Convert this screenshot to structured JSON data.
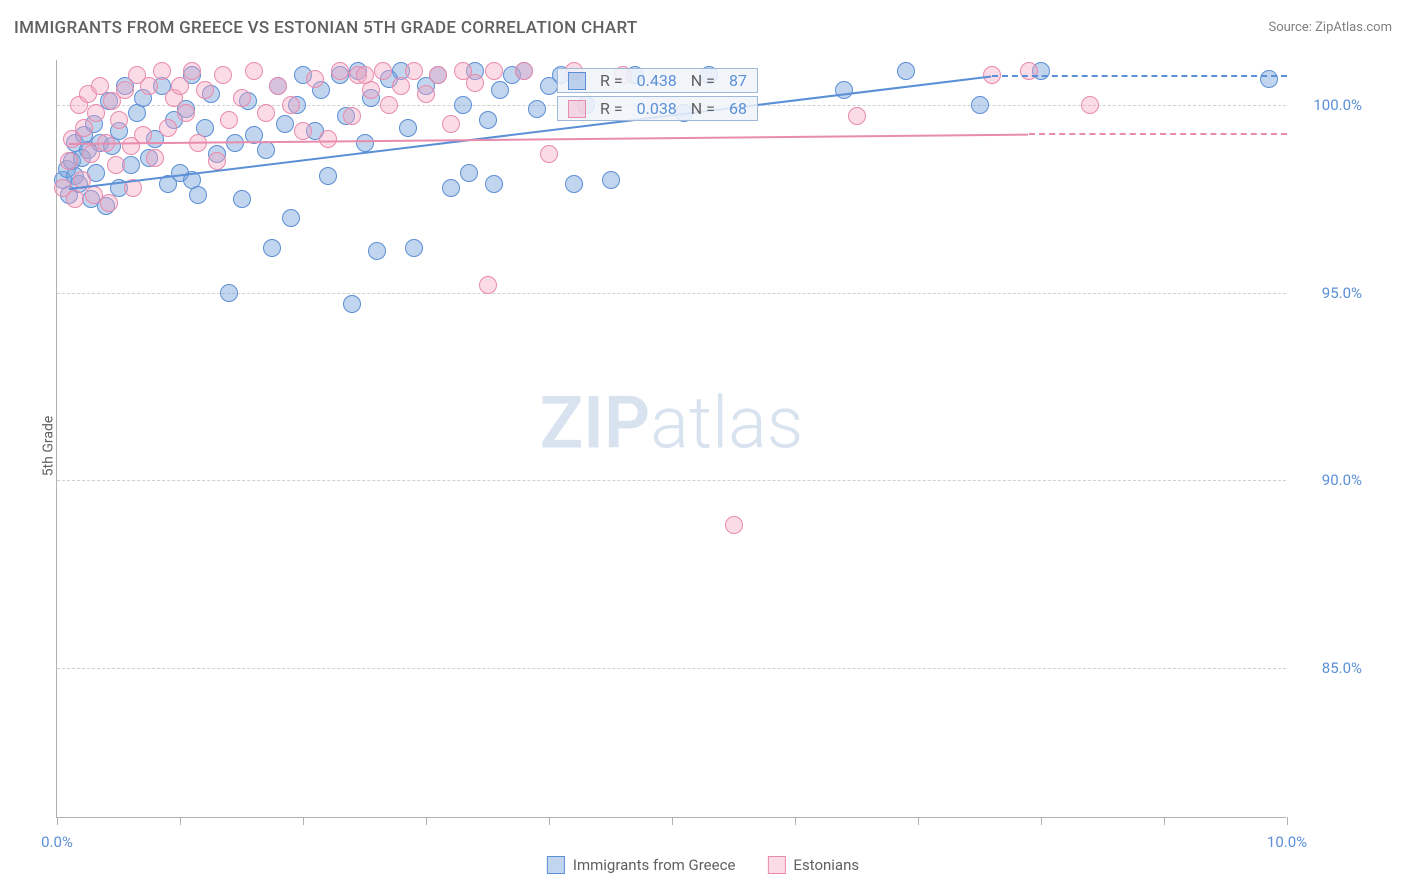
{
  "title": "IMMIGRANTS FROM GREECE VS ESTONIAN 5TH GRADE CORRELATION CHART",
  "source": "Source: ZipAtlas.com",
  "ylabel": "5th Grade",
  "watermark_bold": "ZIP",
  "watermark_light": "atlas",
  "chart": {
    "type": "scatter",
    "xlim": [
      0,
      10
    ],
    "ylim": [
      81,
      101.2
    ],
    "x_ticks": [
      0,
      1,
      2,
      3,
      4,
      5,
      6,
      7,
      8,
      9,
      10
    ],
    "x_tick_labels": {
      "0": "0.0%",
      "10": "10.0%"
    },
    "y_ticks": [
      85,
      90,
      95,
      100
    ],
    "y_tick_labels": [
      "85.0%",
      "90.0%",
      "95.0%",
      "100.0%"
    ],
    "grid_color": "#d0d0d0",
    "background_color": "#ffffff",
    "marker_radius": 9,
    "colors": {
      "blue_fill": "rgba(119,162,217,0.45)",
      "blue_stroke": "#5b8fd6",
      "pink_fill": "rgba(244,166,192,0.40)",
      "pink_stroke": "#e88bad",
      "axis_label": "#5b8fd6",
      "title_color": "#606060"
    },
    "series": [
      {
        "name": "Immigrants from Greece",
        "color_key": "blue",
        "R": "0.438",
        "N": "87",
        "trend": {
          "x1": 0.1,
          "y1": 97.8,
          "x2": 7.6,
          "y2": 100.8,
          "dash_to_x": 10.0
        },
        "points": [
          [
            0.05,
            98.0
          ],
          [
            0.08,
            98.3
          ],
          [
            0.1,
            97.6
          ],
          [
            0.12,
            98.5
          ],
          [
            0.15,
            98.1
          ],
          [
            0.15,
            99.0
          ],
          [
            0.18,
            97.9
          ],
          [
            0.2,
            98.6
          ],
          [
            0.22,
            99.2
          ],
          [
            0.25,
            98.8
          ],
          [
            0.28,
            97.5
          ],
          [
            0.3,
            99.5
          ],
          [
            0.32,
            98.2
          ],
          [
            0.35,
            99.0
          ],
          [
            0.4,
            97.3
          ],
          [
            0.42,
            100.1
          ],
          [
            0.45,
            98.9
          ],
          [
            0.5,
            99.3
          ],
          [
            0.5,
            97.8
          ],
          [
            0.55,
            100.5
          ],
          [
            0.6,
            98.4
          ],
          [
            0.65,
            99.8
          ],
          [
            0.7,
            100.2
          ],
          [
            0.75,
            98.6
          ],
          [
            0.8,
            99.1
          ],
          [
            0.85,
            100.5
          ],
          [
            0.9,
            97.9
          ],
          [
            0.95,
            99.6
          ],
          [
            1.0,
            98.2
          ],
          [
            1.05,
            99.9
          ],
          [
            1.1,
            98.0
          ],
          [
            1.1,
            100.8
          ],
          [
            1.15,
            97.6
          ],
          [
            1.2,
            99.4
          ],
          [
            1.25,
            100.3
          ],
          [
            1.3,
            98.7
          ],
          [
            1.4,
            95.0
          ],
          [
            1.45,
            99.0
          ],
          [
            1.5,
            97.5
          ],
          [
            1.55,
            100.1
          ],
          [
            1.6,
            99.2
          ],
          [
            1.7,
            98.8
          ],
          [
            1.75,
            96.2
          ],
          [
            1.8,
            100.5
          ],
          [
            1.85,
            99.5
          ],
          [
            1.9,
            97.0
          ],
          [
            1.95,
            100.0
          ],
          [
            2.0,
            100.8
          ],
          [
            2.1,
            99.3
          ],
          [
            2.15,
            100.4
          ],
          [
            2.2,
            98.1
          ],
          [
            2.3,
            100.8
          ],
          [
            2.35,
            99.7
          ],
          [
            2.4,
            94.7
          ],
          [
            2.45,
            100.9
          ],
          [
            2.5,
            99.0
          ],
          [
            2.55,
            100.2
          ],
          [
            2.6,
            96.1
          ],
          [
            2.7,
            100.7
          ],
          [
            2.8,
            100.9
          ],
          [
            2.85,
            99.4
          ],
          [
            2.9,
            96.2
          ],
          [
            3.0,
            100.5
          ],
          [
            3.1,
            100.8
          ],
          [
            3.2,
            97.8
          ],
          [
            3.3,
            100.0
          ],
          [
            3.35,
            98.2
          ],
          [
            3.4,
            100.9
          ],
          [
            3.5,
            99.6
          ],
          [
            3.55,
            97.9
          ],
          [
            3.6,
            100.4
          ],
          [
            3.7,
            100.8
          ],
          [
            3.8,
            100.9
          ],
          [
            3.9,
            99.9
          ],
          [
            4.0,
            100.5
          ],
          [
            4.1,
            100.8
          ],
          [
            4.2,
            97.9
          ],
          [
            4.3,
            100.0
          ],
          [
            4.5,
            98.0
          ],
          [
            4.7,
            100.8
          ],
          [
            5.1,
            99.8
          ],
          [
            5.3,
            100.8
          ],
          [
            6.4,
            100.4
          ],
          [
            6.9,
            100.9
          ],
          [
            7.5,
            100.0
          ],
          [
            8.0,
            100.9
          ],
          [
            9.85,
            100.7
          ]
        ]
      },
      {
        "name": "Estonians",
        "color_key": "pink",
        "R": "0.038",
        "N": "68",
        "trend": {
          "x1": 0.1,
          "y1": 99.0,
          "x2": 7.9,
          "y2": 99.25,
          "dash_to_x": 10.0
        },
        "points": [
          [
            0.05,
            97.8
          ],
          [
            0.1,
            98.5
          ],
          [
            0.12,
            99.1
          ],
          [
            0.15,
            97.5
          ],
          [
            0.18,
            100.0
          ],
          [
            0.2,
            98.0
          ],
          [
            0.22,
            99.4
          ],
          [
            0.25,
            100.3
          ],
          [
            0.28,
            98.7
          ],
          [
            0.3,
            97.6
          ],
          [
            0.32,
            99.8
          ],
          [
            0.35,
            100.5
          ],
          [
            0.4,
            99.0
          ],
          [
            0.42,
            97.4
          ],
          [
            0.45,
            100.1
          ],
          [
            0.48,
            98.4
          ],
          [
            0.5,
            99.6
          ],
          [
            0.55,
            100.4
          ],
          [
            0.6,
            98.9
          ],
          [
            0.62,
            97.8
          ],
          [
            0.65,
            100.8
          ],
          [
            0.7,
            99.2
          ],
          [
            0.75,
            100.5
          ],
          [
            0.8,
            98.6
          ],
          [
            0.85,
            100.9
          ],
          [
            0.9,
            99.4
          ],
          [
            0.95,
            100.2
          ],
          [
            1.0,
            100.5
          ],
          [
            1.05,
            99.8
          ],
          [
            1.1,
            100.9
          ],
          [
            1.15,
            99.0
          ],
          [
            1.2,
            100.4
          ],
          [
            1.3,
            98.5
          ],
          [
            1.35,
            100.8
          ],
          [
            1.4,
            99.6
          ],
          [
            1.5,
            100.2
          ],
          [
            1.6,
            100.9
          ],
          [
            1.7,
            99.8
          ],
          [
            1.8,
            100.5
          ],
          [
            1.9,
            100.0
          ],
          [
            2.0,
            99.3
          ],
          [
            2.1,
            100.7
          ],
          [
            2.2,
            99.1
          ],
          [
            2.3,
            100.9
          ],
          [
            2.4,
            99.7
          ],
          [
            2.45,
            100.8
          ],
          [
            2.5,
            100.8
          ],
          [
            2.55,
            100.4
          ],
          [
            2.65,
            100.9
          ],
          [
            2.7,
            100.0
          ],
          [
            2.8,
            100.5
          ],
          [
            2.9,
            100.9
          ],
          [
            3.0,
            100.3
          ],
          [
            3.1,
            100.8
          ],
          [
            3.2,
            99.5
          ],
          [
            3.3,
            100.9
          ],
          [
            3.4,
            100.6
          ],
          [
            3.5,
            95.2
          ],
          [
            3.55,
            100.9
          ],
          [
            3.8,
            100.9
          ],
          [
            4.0,
            98.7
          ],
          [
            4.2,
            100.9
          ],
          [
            4.6,
            100.8
          ],
          [
            5.5,
            88.8
          ],
          [
            6.5,
            99.7
          ],
          [
            7.6,
            100.8
          ],
          [
            7.9,
            100.9
          ],
          [
            8.4,
            100.0
          ]
        ]
      }
    ]
  },
  "stats_boxes": [
    {
      "color_key": "blue",
      "R_label": "R =",
      "R": "0.438",
      "N_label": "N =",
      "N": "87"
    },
    {
      "color_key": "pink",
      "R_label": "R =",
      "R": "0.038",
      "N_label": "N =",
      "N": "68"
    }
  ],
  "legend": [
    {
      "swatch": "blue",
      "label": "Immigrants from Greece"
    },
    {
      "swatch": "pink",
      "label": "Estonians"
    }
  ]
}
